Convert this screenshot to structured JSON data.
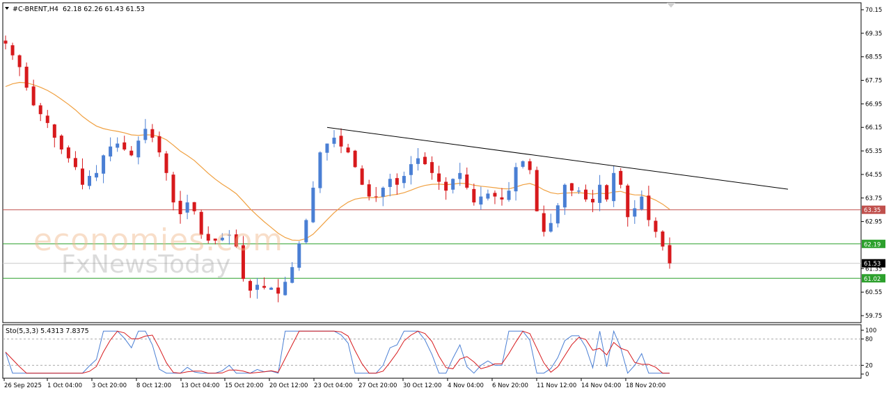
{
  "header": {
    "symbol": "#C-BRENT,H4",
    "ohlc": "62.18 62.26 61.43 61.53"
  },
  "watermark": {
    "line1": "economies.com",
    "line2": "FxNewsToday"
  },
  "chart_data": [
    {
      "type": "candlestick",
      "title": "#C-BRENT,H4",
      "ylim": [
        59.75,
        70.15
      ],
      "yticks": [
        "70.15",
        "69.35",
        "68.55",
        "67.75",
        "66.95",
        "66.15",
        "65.35",
        "64.55",
        "63.75",
        "62.95",
        "62.19",
        "61.53",
        "61.35",
        "61.02",
        "60.55",
        "59.75"
      ],
      "xticks": [
        "26 Sep 2025",
        "1 Oct 04:00",
        "3 Oct 20:00",
        "8 Oct 12:00",
        "13 Oct 04:00",
        "15 Oct 20:00",
        "20 Oct 12:00",
        "23 Oct 04:00",
        "27 Oct 20:00",
        "30 Oct 12:00",
        "4 Nov 04:00",
        "6 Nov 20:00",
        "11 Nov 12:00",
        "14 Nov 04:00",
        "18 Nov 20:00"
      ],
      "close_path": [
        69.0,
        68.6,
        68.2,
        67.5,
        66.9,
        66.6,
        66.3,
        65.8,
        65.4,
        65.1,
        64.8,
        64.2,
        64.5,
        64.6,
        65.2,
        65.5,
        65.6,
        65.4,
        65.2,
        65.7,
        66.1,
        65.8,
        65.3,
        64.6,
        63.6,
        63.2,
        63.6,
        63.3,
        62.5,
        62.3,
        62.3,
        62.4,
        62.5,
        62.1,
        61.0,
        60.6,
        60.8,
        60.7,
        60.7,
        60.5,
        60.9,
        61.4,
        62.2,
        63.0,
        64.1,
        65.3,
        65.6,
        65.8,
        65.5,
        65.3,
        64.8,
        64.2,
        63.8,
        63.8,
        64.1,
        64.4,
        64.2,
        64.5,
        64.9,
        65.1,
        64.9,
        64.6,
        64.3,
        64.0,
        64.4,
        64.6,
        64.1,
        63.6,
        63.8,
        63.9,
        63.8,
        63.7,
        64.0,
        64.8,
        65.0,
        64.7,
        63.3,
        62.6,
        62.9,
        63.5,
        64.2,
        64.0,
        64.0,
        63.7,
        63.6,
        64.2,
        63.7,
        64.6,
        64.2,
        63.1,
        63.4,
        63.8,
        63.0,
        62.6,
        62.1,
        61.53
      ],
      "ma_label": "",
      "levels": [
        {
          "label": "63.35",
          "value": 63.35,
          "color": "#c0504d"
        },
        {
          "label": "62.19",
          "value": 62.19,
          "color": "#2ca02c"
        },
        {
          "label": "61.02",
          "value": 61.02,
          "color": "#2ca02c"
        },
        {
          "label": "61.53",
          "value": 61.53,
          "color": "#000000"
        }
      ],
      "trendline": {
        "from": {
          "x": "23 Oct 04:00",
          "y": 66.15
        },
        "to": {
          "x": "",
          "y": 64.05
        },
        "color": "#000000"
      },
      "colors": {
        "up": "#4a7fd4",
        "down": "#d7191c",
        "ma": "#f0a040"
      }
    },
    {
      "type": "line",
      "title": "Sto(5,3,3) 5.4313 7.8375",
      "ylim": [
        0,
        100
      ],
      "yticks": [
        "100",
        "80",
        "20",
        "0"
      ],
      "levels": [
        80,
        20
      ],
      "series": [
        {
          "color": "#4a7fd4"
        },
        {
          "color": "#d7191c"
        }
      ]
    }
  ]
}
